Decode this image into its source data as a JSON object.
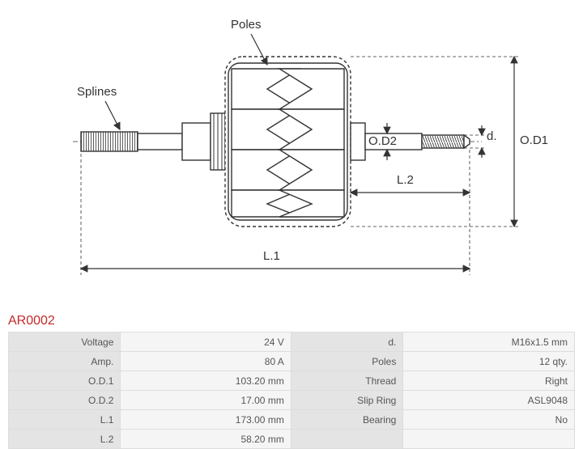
{
  "part_number": "AR0002",
  "labels": {
    "poles": "Poles",
    "splines": "Splines",
    "od1": "O.D1",
    "od2": "O.D2",
    "d": "d.",
    "l1": "L.1",
    "l2": "L.2"
  },
  "specs": {
    "left": [
      {
        "label": "Voltage",
        "value": "24 V"
      },
      {
        "label": "Amp.",
        "value": "80 A"
      },
      {
        "label": "O.D.1",
        "value": "103.20 mm"
      },
      {
        "label": "O.D.2",
        "value": "17.00 mm"
      },
      {
        "label": "L.1",
        "value": "173.00 mm"
      },
      {
        "label": "L.2",
        "value": "58.20 mm"
      }
    ],
    "right": [
      {
        "label": "d.",
        "value": "M16x1.5 mm"
      },
      {
        "label": "Poles",
        "value": "12 qty."
      },
      {
        "label": "Thread",
        "value": "Right"
      },
      {
        "label": "Slip Ring",
        "value": "ASL9048"
      },
      {
        "label": "Bearing",
        "value": "No"
      }
    ]
  },
  "diagram": {
    "stroke_color": "#333333",
    "stroke_width": 1.4,
    "dash": "4,3",
    "arrow_size": 6,
    "font_size": 15,
    "font_family": "Arial"
  }
}
